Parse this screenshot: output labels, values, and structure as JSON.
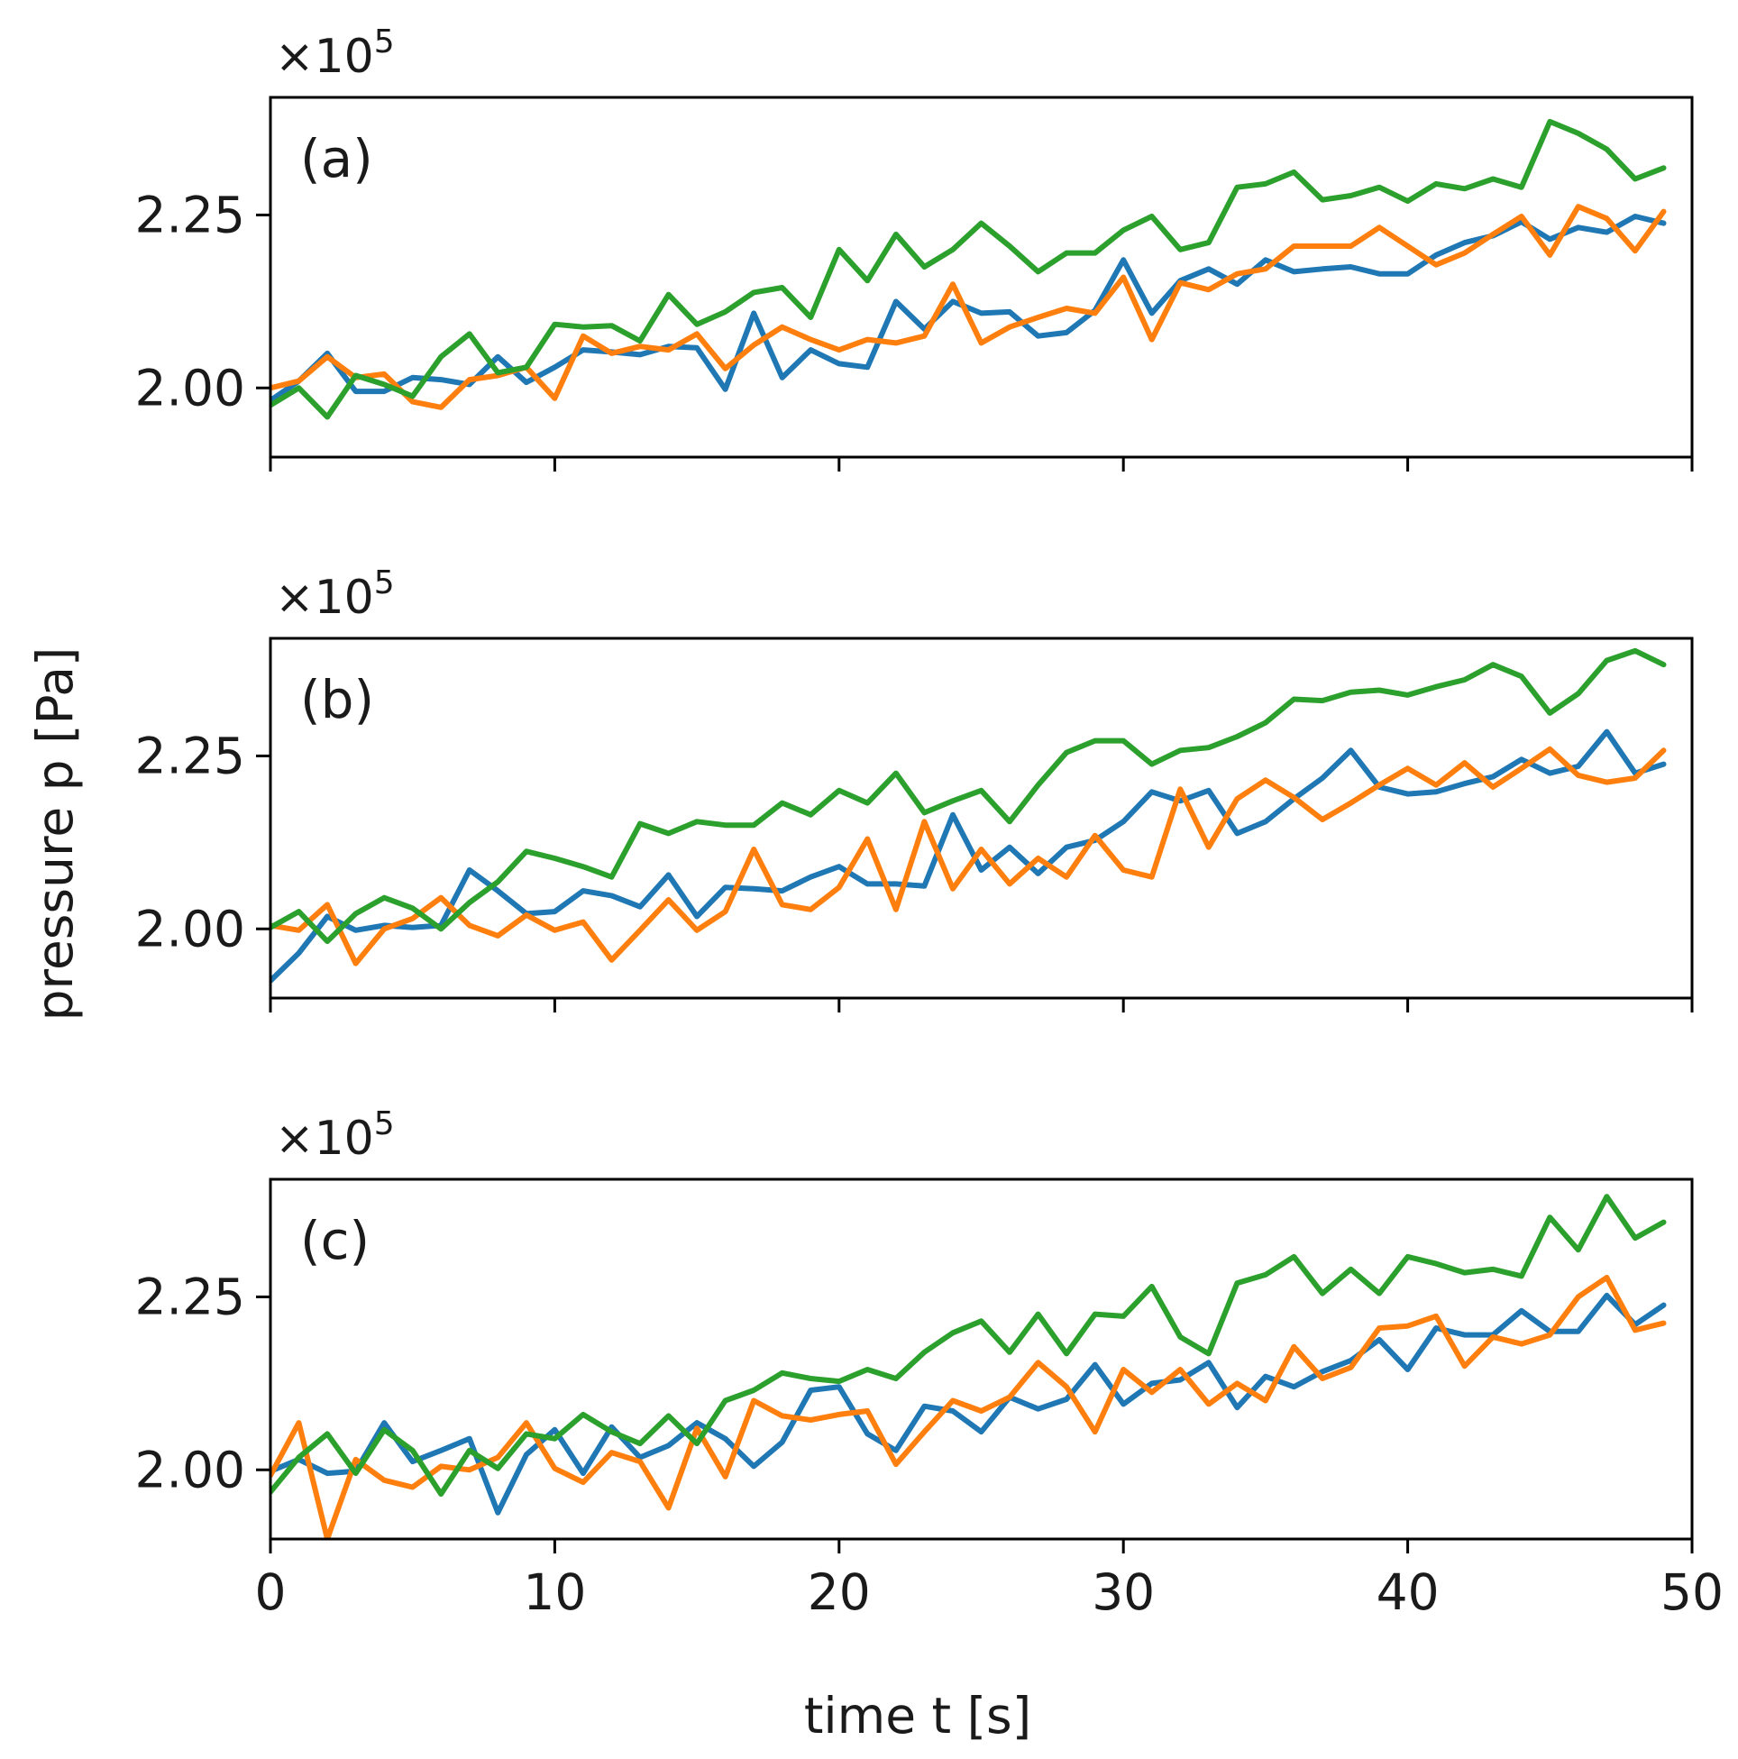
{
  "chart_data": {
    "type": "line",
    "ylabel": "pressure p [Pa]",
    "xlabel": "time t [s]",
    "x_ticks": [
      "0",
      "10",
      "20",
      "30",
      "40",
      "50"
    ],
    "y_ticks": [
      "2.00",
      "2.25"
    ],
    "xlim": [
      0,
      50
    ],
    "ylim": [
      1.9,
      2.42
    ],
    "colors": {
      "blue": "#1f77b4",
      "orange": "#ff7f0e",
      "green": "#2ca02c"
    },
    "panels": [
      {
        "label": "(a)",
        "scale_label": "×10",
        "scale_exp": "5",
        "series": [
          {
            "name": "blue",
            "values": [
              1.982,
              2.01,
              2.05,
              1.995,
              1.995,
              2.015,
              2.012,
              2.005,
              2.045,
              2.008,
              2.03,
              2.055,
              2.052,
              2.048,
              2.06,
              2.058,
              1.998,
              2.108,
              2.015,
              2.055,
              2.035,
              2.03,
              2.125,
              2.085,
              2.125,
              2.108,
              2.11,
              2.075,
              2.08,
              2.112,
              2.185,
              2.108,
              2.155,
              2.172,
              2.15,
              2.185,
              2.168,
              2.172,
              2.175,
              2.165,
              2.165,
              2.192,
              2.21,
              2.22,
              2.24,
              2.215,
              2.232,
              2.225,
              2.248,
              2.238
            ]
          },
          {
            "name": "orange",
            "values": [
              2.0,
              2.01,
              2.045,
              2.015,
              2.02,
              1.98,
              1.972,
              2.012,
              2.018,
              2.03,
              1.985,
              2.075,
              2.05,
              2.06,
              2.055,
              2.078,
              2.028,
              2.062,
              2.088,
              2.07,
              2.055,
              2.07,
              2.065,
              2.075,
              2.15,
              2.065,
              2.088,
              2.102,
              2.115,
              2.108,
              2.16,
              2.07,
              2.152,
              2.142,
              2.165,
              2.172,
              2.205,
              2.205,
              2.205,
              2.232,
              2.205,
              2.178,
              2.195,
              2.222,
              2.248,
              2.192,
              2.262,
              2.245,
              2.198,
              2.255
            ]
          },
          {
            "name": "green",
            "values": [
              1.975,
              2.0,
              1.958,
              2.018,
              2.005,
              1.988,
              2.045,
              2.078,
              2.022,
              2.03,
              2.092,
              2.088,
              2.09,
              2.068,
              2.135,
              2.092,
              2.11,
              2.138,
              2.145,
              2.102,
              2.2,
              2.155,
              2.222,
              2.175,
              2.2,
              2.238,
              2.205,
              2.168,
              2.195,
              2.195,
              2.228,
              2.248,
              2.2,
              2.21,
              2.29,
              2.295,
              2.312,
              2.272,
              2.278,
              2.29,
              2.27,
              2.295,
              2.288,
              2.302,
              2.29,
              2.385,
              2.368,
              2.345,
              2.302,
              2.318
            ]
          }
        ]
      },
      {
        "label": "(b)",
        "scale_label": "×10",
        "scale_exp": "5",
        "series": [
          {
            "name": "blue",
            "values": [
              1.925,
              1.965,
              2.018,
              1.998,
              2.005,
              2.002,
              2.005,
              2.085,
              2.055,
              2.022,
              2.025,
              2.055,
              2.048,
              2.032,
              2.078,
              2.018,
              2.06,
              2.058,
              2.055,
              2.075,
              2.09,
              2.065,
              2.065,
              2.062,
              2.165,
              2.085,
              2.118,
              2.08,
              2.118,
              2.128,
              2.155,
              2.198,
              2.185,
              2.2,
              2.138,
              2.155,
              2.188,
              2.218,
              2.258,
              2.205,
              2.195,
              2.198,
              2.21,
              2.22,
              2.245,
              2.225,
              2.235,
              2.285,
              2.225,
              2.238
            ]
          },
          {
            "name": "orange",
            "values": [
              2.005,
              1.998,
              2.035,
              1.95,
              2.0,
              2.015,
              2.045,
              2.005,
              1.99,
              2.02,
              1.998,
              2.01,
              1.955,
              1.998,
              2.042,
              1.998,
              2.025,
              2.115,
              2.035,
              2.028,
              2.06,
              2.13,
              2.028,
              2.155,
              2.058,
              2.115,
              2.065,
              2.102,
              2.075,
              2.135,
              2.085,
              2.075,
              2.202,
              2.118,
              2.188,
              2.215,
              2.19,
              2.158,
              2.182,
              2.208,
              2.232,
              2.208,
              2.24,
              2.205,
              2.232,
              2.26,
              2.222,
              2.212,
              2.218,
              2.258
            ]
          },
          {
            "name": "green",
            "values": [
              2.002,
              2.025,
              1.982,
              2.022,
              2.045,
              2.03,
              2.0,
              2.038,
              2.068,
              2.112,
              2.102,
              2.09,
              2.075,
              2.152,
              2.138,
              2.155,
              2.15,
              2.15,
              2.182,
              2.165,
              2.2,
              2.182,
              2.225,
              2.168,
              2.185,
              2.2,
              2.155,
              2.208,
              2.255,
              2.272,
              2.272,
              2.238,
              2.258,
              2.262,
              2.278,
              2.298,
              2.332,
              2.33,
              2.342,
              2.345,
              2.338,
              2.35,
              2.36,
              2.382,
              2.365,
              2.312,
              2.34,
              2.388,
              2.402,
              2.382
            ]
          }
        ]
      },
      {
        "label": "(c)",
        "scale_label": "×10",
        "scale_exp": "5",
        "series": [
          {
            "name": "blue",
            "values": [
              1.998,
              2.015,
              1.995,
              1.998,
              2.068,
              2.012,
              2.028,
              2.045,
              1.938,
              2.022,
              2.058,
              1.995,
              2.062,
              2.018,
              2.035,
              2.068,
              2.045,
              2.005,
              2.04,
              2.115,
              2.12,
              2.052,
              2.028,
              2.092,
              2.085,
              2.055,
              2.105,
              2.088,
              2.102,
              2.152,
              2.095,
              2.125,
              2.13,
              2.155,
              2.09,
              2.135,
              2.12,
              2.142,
              2.158,
              2.188,
              2.145,
              2.205,
              2.195,
              2.195,
              2.23,
              2.2,
              2.2,
              2.252,
              2.21,
              2.238
            ]
          },
          {
            "name": "orange",
            "values": [
              1.992,
              2.068,
              1.9,
              2.015,
              1.985,
              1.975,
              2.005,
              2.0,
              2.018,
              2.068,
              2.002,
              1.982,
              2.025,
              2.012,
              1.945,
              2.06,
              1.99,
              2.1,
              2.078,
              2.072,
              2.08,
              2.085,
              2.008,
              2.055,
              2.1,
              2.085,
              2.105,
              2.155,
              2.12,
              2.055,
              2.145,
              2.112,
              2.145,
              2.095,
              2.125,
              2.1,
              2.178,
              2.132,
              2.148,
              2.205,
              2.208,
              2.222,
              2.15,
              2.192,
              2.182,
              2.195,
              2.25,
              2.278,
              2.202,
              2.212
            ]
          },
          {
            "name": "green",
            "values": [
              1.968,
              2.018,
              2.052,
              1.995,
              2.058,
              2.028,
              1.965,
              2.028,
              2.002,
              2.052,
              2.045,
              2.08,
              2.055,
              2.038,
              2.078,
              2.038,
              2.1,
              2.115,
              2.14,
              2.132,
              2.128,
              2.145,
              2.132,
              2.17,
              2.198,
              2.215,
              2.17,
              2.225,
              2.168,
              2.225,
              2.222,
              2.265,
              2.192,
              2.168,
              2.27,
              2.282,
              2.308,
              2.255,
              2.29,
              2.255,
              2.308,
              2.298,
              2.285,
              2.29,
              2.28,
              2.365,
              2.318,
              2.395,
              2.335,
              2.358
            ]
          }
        ]
      }
    ]
  }
}
